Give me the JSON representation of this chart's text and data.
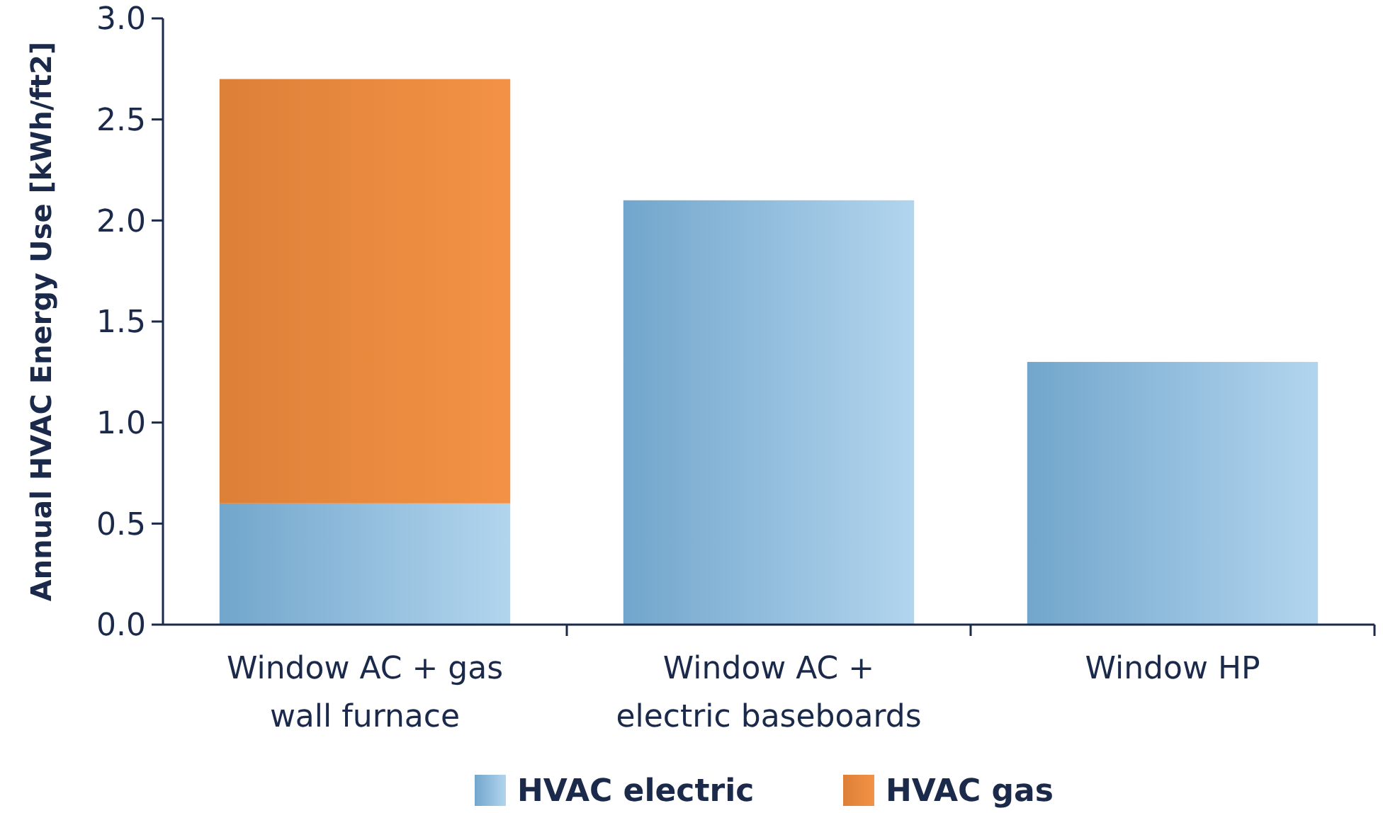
{
  "chart_data": {
    "type": "bar",
    "ylabel": "Annual HVAC Energy Use [kWh/ft2]",
    "categories": [
      "Window AC + gas wall furnace",
      "Window AC + electric baseboards",
      "Window HP"
    ],
    "stacked": true,
    "series": [
      {
        "name": "HVAC electric",
        "color": "#7fb9e3",
        "values": [
          0.6,
          2.1,
          1.3
        ]
      },
      {
        "name": "HVAC gas",
        "color": "#f28c3c",
        "values": [
          2.1,
          0,
          0
        ]
      }
    ],
    "ylim": [
      0,
      3
    ],
    "yticks": [
      {
        "value": 0,
        "label": "0.0"
      },
      {
        "value": 0.5,
        "label": "0.5"
      },
      {
        "value": 1,
        "label": "1.0"
      },
      {
        "value": 1.5,
        "label": "1.5"
      },
      {
        "value": 2,
        "label": "2.0"
      },
      {
        "value": 2.5,
        "label": "2.5"
      },
      {
        "value": 3,
        "label": "3.0"
      }
    ],
    "grid": false,
    "legend": "bottom"
  }
}
